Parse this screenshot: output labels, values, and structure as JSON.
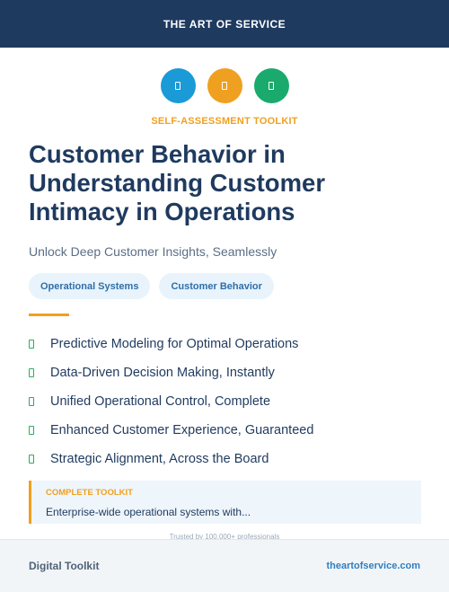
{
  "header": {
    "brand": "THE ART OF SERVICE"
  },
  "icons": [
    {
      "name": "document-icon",
      "color": "#1a9ad6"
    },
    {
      "name": "document-icon",
      "color": "#f0a020"
    },
    {
      "name": "document-icon",
      "color": "#1aaa6e"
    }
  ],
  "kicker": "SELF-ASSESSMENT TOOLKIT",
  "title": "Customer Behavior in Understanding Customer Intimacy in Operations",
  "subtitle": "Unlock Deep Customer Insights, Seamlessly",
  "tags": [
    "Operational Systems",
    "Customer Behavior"
  ],
  "features": [
    "Predictive Modeling for Optimal Operations",
    "Data-Driven Decision Making, Instantly",
    "Unified Operational Control, Complete",
    "Enhanced Customer Experience, Guaranteed",
    "Strategic Alignment, Across the Board"
  ],
  "callout": {
    "label": "COMPLETE TOOLKIT",
    "text": "Enterprise-wide operational systems with..."
  },
  "trusted": "Trusted by 100,000+ professionals",
  "footer": {
    "left": "Digital Toolkit",
    "right": "theartofservice.com"
  },
  "colors": {
    "navy": "#1f3a5f",
    "accent": "#f0a020",
    "check": "#27ae60"
  }
}
